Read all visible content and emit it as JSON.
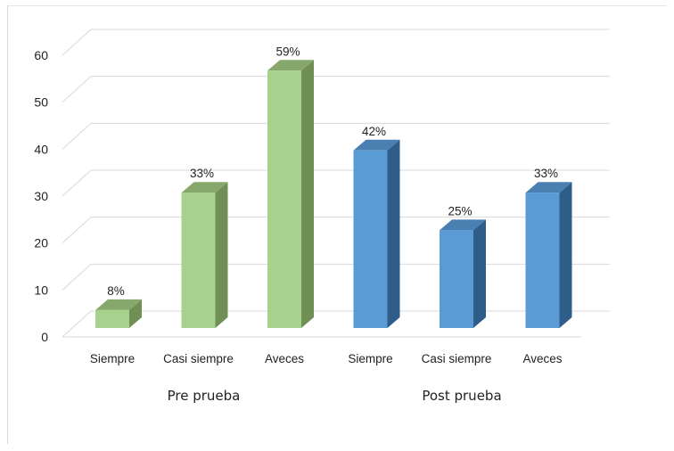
{
  "chart_data": {
    "type": "bar",
    "variant": "3d-column",
    "categories": [
      "Siempre",
      "Casi siempre",
      "Aveces",
      "Siempre",
      "Casi siempre",
      "Aveces"
    ],
    "groups": [
      {
        "label": "Pre prueba",
        "start": 0,
        "count": 3
      },
      {
        "label": "Post prueba",
        "start": 3,
        "count": 3
      }
    ],
    "values": [
      8,
      33,
      59,
      42,
      25,
      33
    ],
    "data_labels": [
      "8%",
      "33%",
      "59%",
      "42%",
      "25%",
      "33%"
    ],
    "ylim": [
      0,
      60
    ],
    "yticks": [
      0,
      10,
      20,
      30,
      40,
      50,
      60
    ],
    "grid": true,
    "colors": {
      "pre_front": "#a9d18e",
      "pre_side": "#6f8f55",
      "pre_top": "#86a86c",
      "post_front": "#5b9bd5",
      "post_side": "#2f5d8a",
      "post_top": "#4a7fb2",
      "grid": "#d9d9d9"
    }
  }
}
